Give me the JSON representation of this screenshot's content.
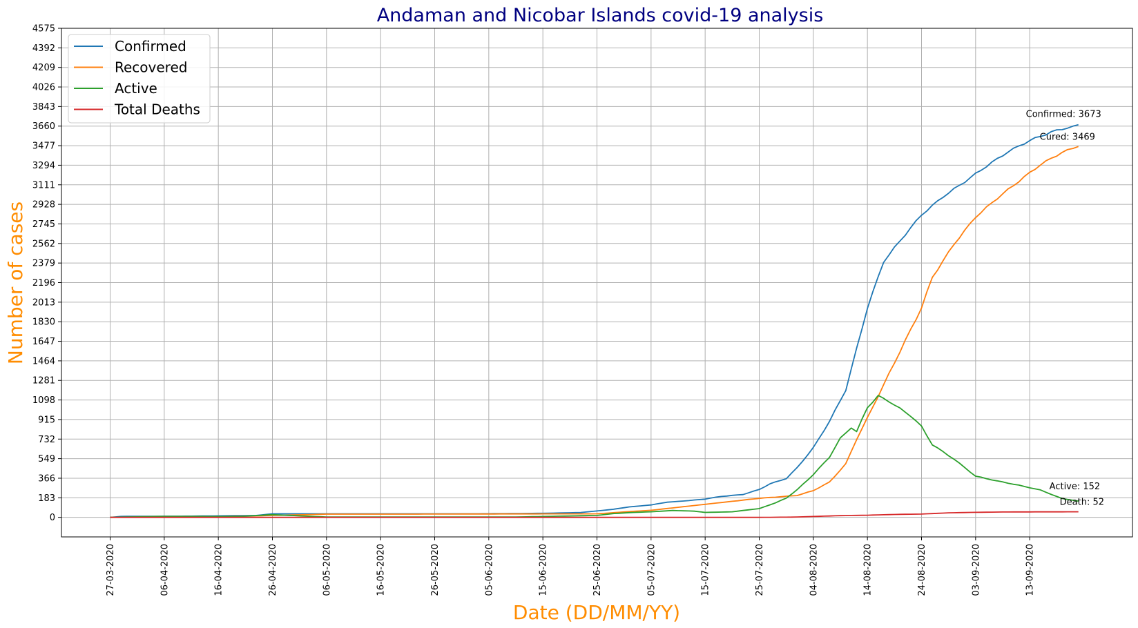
{
  "chart_data": {
    "type": "line",
    "title": "Andaman and Nicobar Islands covid-19 analysis",
    "xlabel": "Date (DD/MM/YY)",
    "ylabel": "Number of cases",
    "x_start": "2020-03-27",
    "x_end": "2020-09-22",
    "xlim": [
      "2020-03-18",
      "2020-10-02"
    ],
    "ylim": [
      -183,
      4575
    ],
    "x_ticks": [
      "27-03-2020",
      "06-04-2020",
      "16-04-2020",
      "26-04-2020",
      "06-05-2020",
      "16-05-2020",
      "26-05-2020",
      "05-06-2020",
      "15-06-2020",
      "25-06-2020",
      "05-07-2020",
      "15-07-2020",
      "25-07-2020",
      "04-08-2020",
      "14-08-2020",
      "24-08-2020",
      "03-09-2020",
      "13-09-2020"
    ],
    "y_ticks": [
      0,
      183,
      366,
      549,
      732,
      915,
      1098,
      1281,
      1464,
      1647,
      1830,
      2013,
      2196,
      2379,
      2562,
      2745,
      2928,
      3111,
      3294,
      3477,
      3660,
      3843,
      4026,
      4209,
      4392,
      4575
    ],
    "grid": true,
    "legend_position": "top-left",
    "series": [
      {
        "name": "Confirmed",
        "color": "#1f77b4",
        "points": [
          [
            "2020-03-27",
            0
          ],
          [
            "2020-03-29",
            9
          ],
          [
            "2020-04-03",
            10
          ],
          [
            "2020-04-10",
            11
          ],
          [
            "2020-04-18",
            15
          ],
          [
            "2020-04-23",
            18
          ],
          [
            "2020-04-26",
            33
          ],
          [
            "2020-05-02",
            33
          ],
          [
            "2020-05-09",
            33
          ],
          [
            "2020-06-01",
            33
          ],
          [
            "2020-06-09",
            35
          ],
          [
            "2020-06-15",
            38
          ],
          [
            "2020-06-22",
            45
          ],
          [
            "2020-06-25",
            60
          ],
          [
            "2020-06-28",
            75
          ],
          [
            "2020-07-01",
            98
          ],
          [
            "2020-07-05",
            116
          ],
          [
            "2020-07-08",
            142
          ],
          [
            "2020-07-12",
            157
          ],
          [
            "2020-07-15",
            171
          ],
          [
            "2020-07-18",
            196
          ],
          [
            "2020-07-22",
            214
          ],
          [
            "2020-07-25",
            260
          ],
          [
            "2020-07-27",
            314
          ],
          [
            "2020-07-30",
            363
          ],
          [
            "2020-08-01",
            464
          ],
          [
            "2020-08-04",
            651
          ],
          [
            "2020-08-07",
            899
          ],
          [
            "2020-08-10",
            1192
          ],
          [
            "2020-08-14",
            1960
          ],
          [
            "2020-08-17",
            2393
          ],
          [
            "2020-08-20",
            2585
          ],
          [
            "2020-08-24",
            2830
          ],
          [
            "2020-08-28",
            3000
          ],
          [
            "2020-09-01",
            3140
          ],
          [
            "2020-09-05",
            3285
          ],
          [
            "2020-09-09",
            3420
          ],
          [
            "2020-09-13",
            3525
          ],
          [
            "2020-09-17",
            3605
          ],
          [
            "2020-09-22",
            3673
          ]
        ]
      },
      {
        "name": "Recovered",
        "color": "#ff7f0e",
        "points": [
          [
            "2020-03-27",
            0
          ],
          [
            "2020-04-05",
            2
          ],
          [
            "2020-04-20",
            10
          ],
          [
            "2020-05-06",
            30
          ],
          [
            "2020-05-20",
            30
          ],
          [
            "2020-06-10",
            32
          ],
          [
            "2020-06-25",
            33
          ],
          [
            "2020-07-01",
            54
          ],
          [
            "2020-07-05",
            66
          ],
          [
            "2020-07-10",
            94
          ],
          [
            "2020-07-15",
            122
          ],
          [
            "2020-07-20",
            150
          ],
          [
            "2020-07-25",
            178
          ],
          [
            "2020-07-29",
            193
          ],
          [
            "2020-08-01",
            205
          ],
          [
            "2020-08-04",
            250
          ],
          [
            "2020-08-07",
            330
          ],
          [
            "2020-08-10",
            500
          ],
          [
            "2020-08-12",
            730
          ],
          [
            "2020-08-14",
            930
          ],
          [
            "2020-08-17",
            1240
          ],
          [
            "2020-08-20",
            1550
          ],
          [
            "2020-08-24",
            1960
          ],
          [
            "2020-08-26",
            2245
          ],
          [
            "2020-08-30",
            2555
          ],
          [
            "2020-09-03",
            2810
          ],
          [
            "2020-09-07",
            2985
          ],
          [
            "2020-09-11",
            3145
          ],
          [
            "2020-09-15",
            3300
          ],
          [
            "2020-09-19",
            3415
          ],
          [
            "2020-09-22",
            3469
          ]
        ]
      },
      {
        "name": "Active",
        "color": "#2ca02c",
        "points": [
          [
            "2020-03-27",
            0
          ],
          [
            "2020-04-05",
            9
          ],
          [
            "2020-04-20",
            8
          ],
          [
            "2020-04-26",
            25
          ],
          [
            "2020-05-06",
            3
          ],
          [
            "2020-06-10",
            3
          ],
          [
            "2020-06-25",
            18
          ],
          [
            "2020-06-28",
            35
          ],
          [
            "2020-07-01",
            44
          ],
          [
            "2020-07-05",
            52
          ],
          [
            "2020-07-09",
            64
          ],
          [
            "2020-07-13",
            58
          ],
          [
            "2020-07-15",
            46
          ],
          [
            "2020-07-20",
            52
          ],
          [
            "2020-07-25",
            82
          ],
          [
            "2020-07-28",
            135
          ],
          [
            "2020-07-30",
            180
          ],
          [
            "2020-08-01",
            258
          ],
          [
            "2020-08-04",
            400
          ],
          [
            "2020-08-07",
            565
          ],
          [
            "2020-08-09",
            740
          ],
          [
            "2020-08-11",
            840
          ],
          [
            "2020-08-12",
            800
          ],
          [
            "2020-08-14",
            1030
          ],
          [
            "2020-08-16",
            1135
          ],
          [
            "2020-08-18",
            1085
          ],
          [
            "2020-08-22",
            950
          ],
          [
            "2020-08-24",
            850
          ],
          [
            "2020-08-26",
            680
          ],
          [
            "2020-08-30",
            545
          ],
          [
            "2020-09-03",
            385
          ],
          [
            "2020-09-07",
            340
          ],
          [
            "2020-09-11",
            300
          ],
          [
            "2020-09-15",
            255
          ],
          [
            "2020-09-19",
            175
          ],
          [
            "2020-09-22",
            152
          ]
        ]
      },
      {
        "name": "Total Deaths",
        "color": "#d62728",
        "points": [
          [
            "2020-03-27",
            0
          ],
          [
            "2020-07-25",
            0
          ],
          [
            "2020-07-31",
            2
          ],
          [
            "2020-08-04",
            8
          ],
          [
            "2020-08-09",
            16
          ],
          [
            "2020-08-14",
            20
          ],
          [
            "2020-08-19",
            27
          ],
          [
            "2020-08-24",
            31
          ],
          [
            "2020-08-29",
            42
          ],
          [
            "2020-09-03",
            47
          ],
          [
            "2020-09-08",
            50
          ],
          [
            "2020-09-13",
            51
          ],
          [
            "2020-09-22",
            52
          ]
        ]
      }
    ],
    "annotations": [
      {
        "text": "Confirmed: 3673",
        "x": "2020-09-22",
        "y": 3673
      },
      {
        "text": "Cured: 3469",
        "x": "2020-09-22",
        "y": 3469
      },
      {
        "text": "Active: 152",
        "x": "2020-09-22",
        "y": 152
      },
      {
        "text": "Death: 52",
        "x": "2020-09-22",
        "y": 52
      }
    ]
  }
}
